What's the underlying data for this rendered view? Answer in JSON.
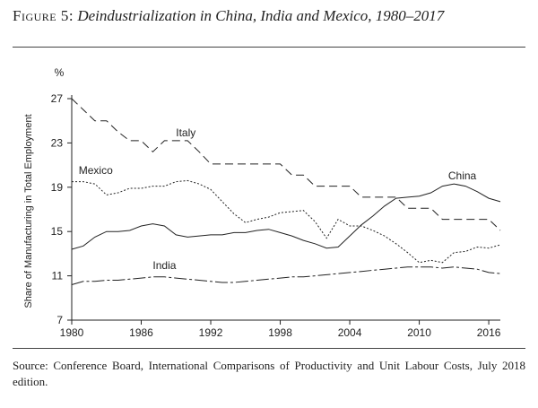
{
  "figure": {
    "label": "Figure 5:",
    "title": "Deindustrialization in China, India and Mexico, 1980–2017"
  },
  "source_note": "Source: Conference Board, International Comparisons of Productivity and Unit Labour Costs, July 2018 edition.",
  "chart_data": {
    "type": "line",
    "unit": "%",
    "ylabel": "Share of Manufacturing in Total Employment",
    "xlabel": "",
    "xlim": [
      1980,
      2017
    ],
    "ylim": [
      7,
      27
    ],
    "xticks": [
      1980,
      1986,
      1992,
      1998,
      2004,
      2010,
      2016
    ],
    "yticks": [
      7,
      11,
      15,
      19,
      23,
      27
    ],
    "grid": false,
    "x": [
      1980,
      1981,
      1982,
      1983,
      1984,
      1985,
      1986,
      1987,
      1988,
      1989,
      1990,
      1991,
      1992,
      1993,
      1994,
      1995,
      1996,
      1997,
      1998,
      1999,
      2000,
      2001,
      2002,
      2003,
      2004,
      2005,
      2006,
      2007,
      2008,
      2009,
      2010,
      2011,
      2012,
      2013,
      2014,
      2015,
      2016,
      2017
    ],
    "series": [
      {
        "name": "Italy",
        "style": "long-dash",
        "values": [
          27.0,
          26.0,
          25.0,
          25.0,
          24.0,
          23.2,
          23.2,
          22.2,
          23.2,
          23.2,
          23.2,
          22.2,
          21.1,
          21.1,
          21.1,
          21.1,
          21.1,
          21.1,
          21.1,
          20.1,
          20.1,
          19.1,
          19.1,
          19.1,
          19.1,
          18.1,
          18.1,
          18.1,
          18.1,
          17.1,
          17.1,
          17.1,
          16.1,
          16.1,
          16.1,
          16.1,
          16.1,
          15.1
        ]
      },
      {
        "name": "Mexico",
        "style": "dotted",
        "values": [
          19.5,
          19.5,
          19.3,
          18.3,
          18.5,
          18.9,
          18.9,
          19.1,
          19.1,
          19.5,
          19.6,
          19.3,
          18.8,
          17.7,
          16.6,
          15.8,
          16.1,
          16.3,
          16.7,
          16.8,
          16.9,
          15.9,
          14.4,
          16.1,
          15.5,
          15.5,
          15.1,
          14.6,
          13.9,
          13.1,
          12.2,
          12.4,
          12.2,
          13.1,
          13.2,
          13.6,
          13.5,
          13.8
        ]
      },
      {
        "name": "China",
        "style": "solid",
        "values": [
          13.4,
          13.7,
          14.5,
          15.0,
          15.0,
          15.1,
          15.5,
          15.7,
          15.5,
          14.7,
          14.5,
          14.6,
          14.7,
          14.7,
          14.9,
          14.9,
          15.1,
          15.2,
          14.9,
          14.6,
          14.2,
          13.9,
          13.5,
          13.6,
          14.6,
          15.6,
          16.4,
          17.3,
          18.0,
          18.1,
          18.2,
          18.5,
          19.1,
          19.3,
          19.1,
          18.6,
          18.0,
          17.7
        ]
      },
      {
        "name": "India",
        "style": "dash-dot",
        "values": [
          10.2,
          10.5,
          10.5,
          10.6,
          10.6,
          10.7,
          10.8,
          10.9,
          10.9,
          10.8,
          10.7,
          10.6,
          10.5,
          10.4,
          10.4,
          10.5,
          10.6,
          10.7,
          10.8,
          10.9,
          10.9,
          11.0,
          11.1,
          11.2,
          11.3,
          11.4,
          11.5,
          11.6,
          11.7,
          11.8,
          11.8,
          11.8,
          11.7,
          11.8,
          11.7,
          11.6,
          11.3,
          11.2
        ]
      }
    ]
  }
}
